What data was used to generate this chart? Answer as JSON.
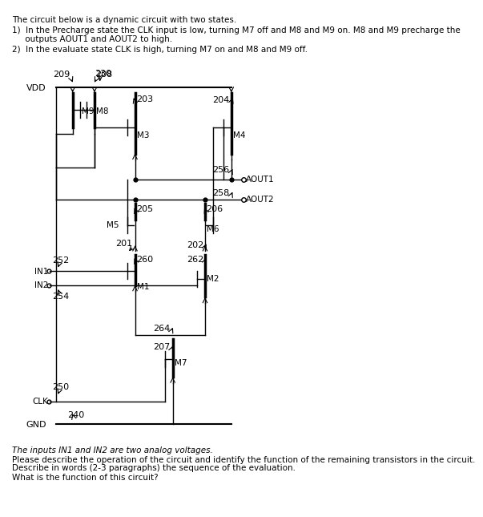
{
  "title_text": "The circuit below is a dynamic circuit with two states.",
  "b1a": "1)  In the Precharge state the CLK input is low, turning M7 off and M8 and M9 on. M8 and M9 precharge the",
  "b1b": "     outputs AOUT1 and AOUT2 to high.",
  "b2": "2)  In the evaluate state CLK is high, turning M7 on and M8 and M9 off.",
  "footer1": "The inputs IN1 and IN2 are two analog voltages.",
  "footer2": "Please describe the operation of the circuit and identify the function of the remaining transistors in the circuit.",
  "footer3": "Describe in words (2-3 paragraphs) the sequence of the evaluation.",
  "footer4": "What is the function of this circuit?",
  "bg_color": "#ffffff",
  "lc": "#000000"
}
